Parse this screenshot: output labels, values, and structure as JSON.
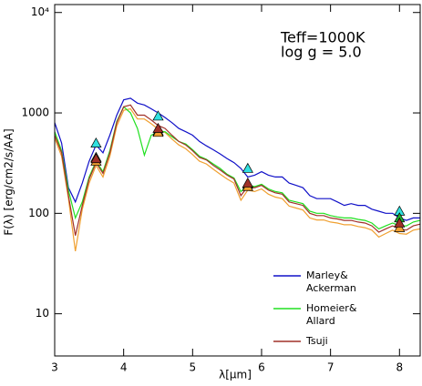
{
  "chart_data": {
    "type": "line",
    "annotation": [
      "Teff=1000K",
      "log g = 5.0"
    ],
    "x_label": "λ[μm]",
    "y_label": "F(λ) [erg/cm2/s/AA]",
    "log_y": true,
    "legend": "lower right",
    "xlim": [
      3,
      8.3
    ],
    "ylim": [
      3.8,
      12000
    ],
    "xticks": [
      3,
      4,
      5,
      6,
      7,
      8
    ],
    "yticks": [
      10,
      100,
      1000,
      {
        "value": 10000,
        "label": "10⁴"
      }
    ],
    "x": [
      3.0,
      3.1,
      3.2,
      3.3,
      3.4,
      3.5,
      3.6,
      3.7,
      3.8,
      3.9,
      4.0,
      4.1,
      4.2,
      4.3,
      4.4,
      4.5,
      4.6,
      4.7,
      4.8,
      4.9,
      5.0,
      5.1,
      5.2,
      5.3,
      5.4,
      5.5,
      5.6,
      5.7,
      5.8,
      5.9,
      6.0,
      6.1,
      6.2,
      6.3,
      6.4,
      6.5,
      6.6,
      6.7,
      6.8,
      6.9,
      7.0,
      7.1,
      7.2,
      7.3,
      7.4,
      7.5,
      7.6,
      7.7,
      7.8,
      7.9,
      8.0,
      8.1,
      8.2,
      8.3
    ],
    "series": [
      {
        "name": "Marley&\nAckerman",
        "color": "#1010c8",
        "values": [
          800,
          500,
          180,
          130,
          200,
          330,
          480,
          400,
          600,
          950,
          1350,
          1400,
          1250,
          1200,
          1100,
          1000,
          900,
          800,
          700,
          650,
          600,
          520,
          470,
          430,
          390,
          350,
          320,
          280,
          230,
          240,
          260,
          240,
          230,
          230,
          200,
          190,
          180,
          150,
          140,
          140,
          140,
          130,
          120,
          125,
          120,
          120,
          110,
          105,
          100,
          100,
          90,
          85,
          90,
          90
        ]
      },
      {
        "color": "#f0a030",
        "values": [
          560,
          370,
          140,
          42,
          110,
          200,
          300,
          230,
          370,
          740,
          1060,
          1100,
          870,
          870,
          780,
          690,
          640,
          550,
          480,
          440,
          385,
          330,
          310,
          275,
          245,
          220,
          200,
          135,
          170,
          165,
          175,
          155,
          145,
          140,
          118,
          113,
          108,
          90,
          86,
          86,
          82,
          80,
          77,
          77,
          74,
          72,
          68,
          58,
          63,
          68,
          63,
          62,
          68,
          70
        ]
      },
      {
        "name": "Homeier&\nAllard",
        "color": "#20e020",
        "values": [
          650,
          420,
          170,
          90,
          130,
          230,
          330,
          260,
          420,
          820,
          1150,
          1000,
          700,
          380,
          600,
          650,
          650,
          580,
          520,
          490,
          430,
          370,
          345,
          310,
          280,
          245,
          225,
          165,
          190,
          185,
          195,
          175,
          165,
          160,
          135,
          130,
          125,
          105,
          100,
          100,
          95,
          92,
          90,
          90,
          87,
          85,
          80,
          70,
          75,
          80,
          75,
          75,
          82,
          85
        ]
      },
      {
        "name": "Tsuji",
        "color": "#a03028",
        "values": [
          600,
          400,
          150,
          60,
          120,
          220,
          320,
          250,
          400,
          800,
          1150,
          1200,
          950,
          950,
          850,
          750,
          700,
          600,
          520,
          480,
          420,
          360,
          340,
          300,
          270,
          240,
          220,
          150,
          185,
          180,
          190,
          170,
          160,
          155,
          130,
          125,
          120,
          100,
          95,
          95,
          90,
          88,
          85,
          85,
          82,
          80,
          75,
          65,
          70,
          75,
          70,
          68,
          75,
          78
        ]
      }
    ],
    "photometry": [
      {
        "color": "#30e0e0",
        "x": [
          3.6,
          4.5,
          5.8,
          8.0
        ],
        "values": [
          500,
          930,
          280,
          105
        ]
      },
      {
        "color": "#20b030",
        "x": [
          3.6,
          4.5,
          5.8,
          8.0
        ],
        "values": [
          360,
          660,
          195,
          90
        ]
      },
      {
        "color": "#f0a030",
        "x": [
          3.6,
          4.5,
          5.8,
          8.0
        ],
        "values": [
          330,
          640,
          185,
          72
        ]
      },
      {
        "color": "#a03028",
        "x": [
          3.6,
          4.5,
          5.8,
          8.0
        ],
        "values": [
          350,
          700,
          200,
          80
        ]
      }
    ]
  }
}
